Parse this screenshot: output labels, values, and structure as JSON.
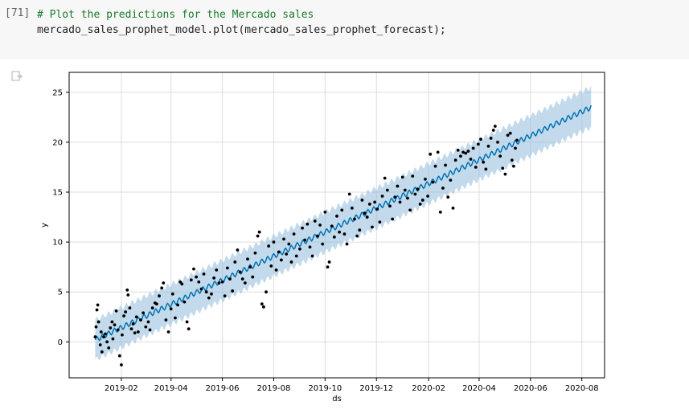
{
  "cell": {
    "exec_count": "[71]",
    "code_comment": "# Plot the predictions for the Mercado sales",
    "code_line": "mercado_sales_prophet_model.plot(mercado_sales_prophet_forecast);"
  },
  "output": {
    "icon": "output-copy-icon"
  },
  "colors": {
    "forecast_line": "#0072b2",
    "band": "#8fbcdc",
    "points": "#000000",
    "grid": "#dddddd"
  },
  "chart_data": {
    "type": "scatter",
    "xlabel": "ds",
    "ylabel": "y",
    "xlim": [
      "2018-12-01",
      "2020-08-28"
    ],
    "ylim": [
      -3.6,
      27
    ],
    "x_ticks": [
      "2019-02",
      "2019-04",
      "2019-06",
      "2019-08",
      "2019-10",
      "2019-12",
      "2020-02",
      "2020-04",
      "2020-06",
      "2020-08"
    ],
    "y_ticks": [
      0,
      5,
      10,
      15,
      20,
      25
    ],
    "grid": true,
    "forecast": {
      "start": "2019-01-01",
      "end": "2020-08-12",
      "y_start": 0.2,
      "y_end": 23.5,
      "band_halfwidth": 2.0,
      "weekly_amplitude": 0.25
    },
    "observations": [
      {
        "x": "2019-01-01",
        "y": 0.5
      },
      {
        "x": "2019-01-02",
        "y": 1.5
      },
      {
        "x": "2019-01-03",
        "y": 3.2
      },
      {
        "x": "2019-01-04",
        "y": 3.7
      },
      {
        "x": "2019-01-05",
        "y": 2.0
      },
      {
        "x": "2019-01-07",
        "y": -0.3
      },
      {
        "x": "2019-01-08",
        "y": 1.0
      },
      {
        "x": "2019-01-09",
        "y": -1.0
      },
      {
        "x": "2019-01-11",
        "y": 0.5
      },
      {
        "x": "2019-01-13",
        "y": 0.8
      },
      {
        "x": "2019-01-15",
        "y": 0.0
      },
      {
        "x": "2019-01-17",
        "y": -0.6
      },
      {
        "x": "2019-01-19",
        "y": 1.4
      },
      {
        "x": "2019-01-21",
        "y": 2.0
      },
      {
        "x": "2019-01-22",
        "y": 0.3
      },
      {
        "x": "2019-01-24",
        "y": 1.7
      },
      {
        "x": "2019-01-26",
        "y": 3.1
      },
      {
        "x": "2019-01-28",
        "y": 1.2
      },
      {
        "x": "2019-01-30",
        "y": -1.4
      },
      {
        "x": "2019-02-01",
        "y": -2.3
      },
      {
        "x": "2019-02-02",
        "y": 0.7
      },
      {
        "x": "2019-02-04",
        "y": 2.6
      },
      {
        "x": "2019-02-06",
        "y": 3.0
      },
      {
        "x": "2019-02-08",
        "y": 5.2
      },
      {
        "x": "2019-02-09",
        "y": 4.7
      },
      {
        "x": "2019-02-11",
        "y": 3.4
      },
      {
        "x": "2019-02-13",
        "y": 1.3
      },
      {
        "x": "2019-02-15",
        "y": 1.8
      },
      {
        "x": "2019-02-17",
        "y": 0.9
      },
      {
        "x": "2019-02-19",
        "y": 2.5
      },
      {
        "x": "2019-02-21",
        "y": 1.0
      },
      {
        "x": "2019-02-24",
        "y": 2.2
      },
      {
        "x": "2019-02-27",
        "y": 2.9
      },
      {
        "x": "2019-03-02",
        "y": 1.5
      },
      {
        "x": "2019-03-05",
        "y": 2.0
      },
      {
        "x": "2019-03-07",
        "y": 1.2
      },
      {
        "x": "2019-03-10",
        "y": 3.4
      },
      {
        "x": "2019-03-13",
        "y": 3.9
      },
      {
        "x": "2019-03-15",
        "y": 3.8
      },
      {
        "x": "2019-03-18",
        "y": 4.6
      },
      {
        "x": "2019-03-21",
        "y": 5.4
      },
      {
        "x": "2019-03-23",
        "y": 5.9
      },
      {
        "x": "2019-03-26",
        "y": 2.2
      },
      {
        "x": "2019-03-29",
        "y": 1.0
      },
      {
        "x": "2019-04-01",
        "y": 3.3
      },
      {
        "x": "2019-04-03",
        "y": 4.8
      },
      {
        "x": "2019-04-06",
        "y": 2.4
      },
      {
        "x": "2019-04-09",
        "y": 3.7
      },
      {
        "x": "2019-04-12",
        "y": 6.0
      },
      {
        "x": "2019-04-14",
        "y": 5.8
      },
      {
        "x": "2019-04-17",
        "y": 4.0
      },
      {
        "x": "2019-04-20",
        "y": 2.0
      },
      {
        "x": "2019-04-22",
        "y": 1.3
      },
      {
        "x": "2019-04-25",
        "y": 6.2
      },
      {
        "x": "2019-04-28",
        "y": 7.3
      },
      {
        "x": "2019-05-01",
        "y": 6.5
      },
      {
        "x": "2019-05-04",
        "y": 6.0
      },
      {
        "x": "2019-05-07",
        "y": 5.3
      },
      {
        "x": "2019-05-10",
        "y": 6.8
      },
      {
        "x": "2019-05-13",
        "y": 5.0
      },
      {
        "x": "2019-05-16",
        "y": 4.4
      },
      {
        "x": "2019-05-19",
        "y": 4.8
      },
      {
        "x": "2019-05-22",
        "y": 6.4
      },
      {
        "x": "2019-05-25",
        "y": 7.2
      },
      {
        "x": "2019-05-28",
        "y": 5.9
      },
      {
        "x": "2019-06-01",
        "y": 6.0
      },
      {
        "x": "2019-06-04",
        "y": 4.6
      },
      {
        "x": "2019-06-07",
        "y": 7.4
      },
      {
        "x": "2019-06-10",
        "y": 6.3
      },
      {
        "x": "2019-06-13",
        "y": 5.1
      },
      {
        "x": "2019-06-16",
        "y": 8.0
      },
      {
        "x": "2019-06-19",
        "y": 9.2
      },
      {
        "x": "2019-06-22",
        "y": 7.0
      },
      {
        "x": "2019-06-25",
        "y": 6.3
      },
      {
        "x": "2019-06-28",
        "y": 5.9
      },
      {
        "x": "2019-07-01",
        "y": 8.3
      },
      {
        "x": "2019-07-04",
        "y": 7.5
      },
      {
        "x": "2019-07-07",
        "y": 6.5
      },
      {
        "x": "2019-07-10",
        "y": 8.9
      },
      {
        "x": "2019-07-13",
        "y": 10.6
      },
      {
        "x": "2019-07-15",
        "y": 11.0
      },
      {
        "x": "2019-07-18",
        "y": 3.8
      },
      {
        "x": "2019-07-20",
        "y": 3.5
      },
      {
        "x": "2019-07-23",
        "y": 5.0
      },
      {
        "x": "2019-07-26",
        "y": 9.6
      },
      {
        "x": "2019-07-29",
        "y": 7.6
      },
      {
        "x": "2019-08-01",
        "y": 10.0
      },
      {
        "x": "2019-08-04",
        "y": 7.2
      },
      {
        "x": "2019-08-07",
        "y": 9.0
      },
      {
        "x": "2019-08-10",
        "y": 8.2
      },
      {
        "x": "2019-08-13",
        "y": 10.3
      },
      {
        "x": "2019-08-16",
        "y": 8.8
      },
      {
        "x": "2019-08-19",
        "y": 9.8
      },
      {
        "x": "2019-08-22",
        "y": 8.0
      },
      {
        "x": "2019-08-25",
        "y": 10.8
      },
      {
        "x": "2019-08-28",
        "y": 8.6
      },
      {
        "x": "2019-09-01",
        "y": 9.3
      },
      {
        "x": "2019-09-04",
        "y": 11.4
      },
      {
        "x": "2019-09-07",
        "y": 10.2
      },
      {
        "x": "2019-09-10",
        "y": 11.8
      },
      {
        "x": "2019-09-13",
        "y": 9.5
      },
      {
        "x": "2019-09-16",
        "y": 8.6
      },
      {
        "x": "2019-09-19",
        "y": 12.1
      },
      {
        "x": "2019-09-22",
        "y": 10.6
      },
      {
        "x": "2019-09-25",
        "y": 11.7
      },
      {
        "x": "2019-09-28",
        "y": 9.8
      },
      {
        "x": "2019-10-01",
        "y": 13.0
      },
      {
        "x": "2019-10-04",
        "y": 7.5
      },
      {
        "x": "2019-10-06",
        "y": 8.0
      },
      {
        "x": "2019-10-09",
        "y": 11.6
      },
      {
        "x": "2019-10-12",
        "y": 10.5
      },
      {
        "x": "2019-10-15",
        "y": 12.6
      },
      {
        "x": "2019-10-18",
        "y": 11.0
      },
      {
        "x": "2019-10-21",
        "y": 13.2
      },
      {
        "x": "2019-10-24",
        "y": 10.8
      },
      {
        "x": "2019-10-27",
        "y": 9.8
      },
      {
        "x": "2019-10-30",
        "y": 14.8
      },
      {
        "x": "2019-11-02",
        "y": 13.4
      },
      {
        "x": "2019-11-05",
        "y": 12.3
      },
      {
        "x": "2019-11-08",
        "y": 10.6
      },
      {
        "x": "2019-11-11",
        "y": 11.2
      },
      {
        "x": "2019-11-14",
        "y": 14.2
      },
      {
        "x": "2019-11-17",
        "y": 12.9
      },
      {
        "x": "2019-11-20",
        "y": 12.5
      },
      {
        "x": "2019-11-23",
        "y": 13.8
      },
      {
        "x": "2019-11-26",
        "y": 11.5
      },
      {
        "x": "2019-11-29",
        "y": 14.0
      },
      {
        "x": "2019-12-02",
        "y": 13.3
      },
      {
        "x": "2019-12-05",
        "y": 12.0
      },
      {
        "x": "2019-12-08",
        "y": 14.6
      },
      {
        "x": "2019-12-11",
        "y": 16.4
      },
      {
        "x": "2019-12-14",
        "y": 15.2
      },
      {
        "x": "2019-12-17",
        "y": 13.6
      },
      {
        "x": "2019-12-20",
        "y": 12.3
      },
      {
        "x": "2019-12-23",
        "y": 14.5
      },
      {
        "x": "2019-12-26",
        "y": 15.6
      },
      {
        "x": "2019-12-29",
        "y": 14.0
      },
      {
        "x": "2020-01-01",
        "y": 16.5
      },
      {
        "x": "2020-01-04",
        "y": 15.2
      },
      {
        "x": "2020-01-07",
        "y": 14.4
      },
      {
        "x": "2020-01-10",
        "y": 13.2
      },
      {
        "x": "2020-01-13",
        "y": 16.6
      },
      {
        "x": "2020-01-16",
        "y": 14.8
      },
      {
        "x": "2020-01-19",
        "y": 15.3
      },
      {
        "x": "2020-01-22",
        "y": 13.8
      },
      {
        "x": "2020-01-25",
        "y": 14.2
      },
      {
        "x": "2020-01-28",
        "y": 16.3
      },
      {
        "x": "2020-01-31",
        "y": 14.6
      },
      {
        "x": "2020-02-03",
        "y": 18.8
      },
      {
        "x": "2020-02-06",
        "y": 16.0
      },
      {
        "x": "2020-02-09",
        "y": 17.6
      },
      {
        "x": "2020-02-12",
        "y": 19.0
      },
      {
        "x": "2020-02-15",
        "y": 13.0
      },
      {
        "x": "2020-02-18",
        "y": 15.4
      },
      {
        "x": "2020-02-21",
        "y": 17.7
      },
      {
        "x": "2020-02-24",
        "y": 14.5
      },
      {
        "x": "2020-02-27",
        "y": 16.2
      },
      {
        "x": "2020-03-01",
        "y": 13.4
      },
      {
        "x": "2020-03-04",
        "y": 18.2
      },
      {
        "x": "2020-03-07",
        "y": 19.2
      },
      {
        "x": "2020-03-10",
        "y": 18.6
      },
      {
        "x": "2020-03-13",
        "y": 19.0
      },
      {
        "x": "2020-03-16",
        "y": 18.9
      },
      {
        "x": "2020-03-19",
        "y": 19.1
      },
      {
        "x": "2020-03-22",
        "y": 18.3
      },
      {
        "x": "2020-03-25",
        "y": 19.4
      },
      {
        "x": "2020-03-28",
        "y": 17.5
      },
      {
        "x": "2020-03-31",
        "y": 19.8
      },
      {
        "x": "2020-04-03",
        "y": 20.3
      },
      {
        "x": "2020-04-06",
        "y": 18.0
      },
      {
        "x": "2020-04-09",
        "y": 17.3
      },
      {
        "x": "2020-04-12",
        "y": 19.6
      },
      {
        "x": "2020-04-15",
        "y": 20.4
      },
      {
        "x": "2020-04-18",
        "y": 21.2
      },
      {
        "x": "2020-04-20",
        "y": 21.6
      },
      {
        "x": "2020-04-23",
        "y": 20.0
      },
      {
        "x": "2020-04-26",
        "y": 18.6
      },
      {
        "x": "2020-04-29",
        "y": 17.4
      },
      {
        "x": "2020-05-02",
        "y": 16.8
      },
      {
        "x": "2020-05-05",
        "y": 20.7
      },
      {
        "x": "2020-05-08",
        "y": 20.9
      },
      {
        "x": "2020-05-10",
        "y": 18.2
      },
      {
        "x": "2020-05-12",
        "y": 17.6
      },
      {
        "x": "2020-05-14",
        "y": 19.4
      },
      {
        "x": "2020-05-16",
        "y": 20.2
      }
    ]
  }
}
